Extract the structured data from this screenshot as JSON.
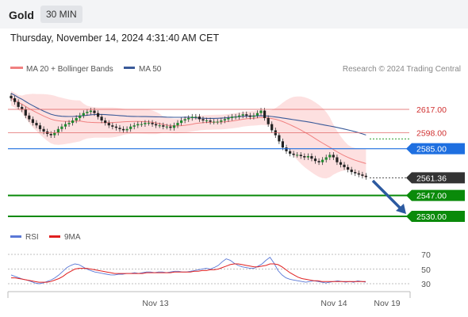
{
  "header": {
    "symbol": "Gold",
    "timeframe": "30 MIN",
    "datetime": "Thursday, November 14, 2024 4:31:40 AM CET"
  },
  "legend": {
    "ma20_label": "MA 20 + Bollinger Bands",
    "ma50_label": "MA 50",
    "ma20_color": "#f08080",
    "ma50_color": "#3a5a99",
    "credit": "Research © 2024 Trading Central"
  },
  "rsi_legend": {
    "rsi_label": "RSI",
    "ma_label": "9MA",
    "rsi_color": "#5a78d6",
    "ma_color": "#e02020"
  },
  "levels": [
    {
      "value": 2617.0,
      "label": "2617.00",
      "kind": "resistance",
      "color": "#e06060"
    },
    {
      "value": 2598.0,
      "label": "2598.00",
      "kind": "resistance",
      "color": "#e06060"
    },
    {
      "value": 2585.0,
      "label": "2585.00",
      "kind": "pivot",
      "color": "#1e6fe0"
    },
    {
      "value": 2561.36,
      "label": "2561.36",
      "kind": "last",
      "color": "#333333"
    },
    {
      "value": 2547.0,
      "label": "2547.00",
      "kind": "support",
      "color": "#0a8a0a"
    },
    {
      "value": 2530.0,
      "label": "2530.00",
      "kind": "support",
      "color": "#0a8a0a"
    }
  ],
  "chart_data": {
    "type": "candlestick",
    "title": "Gold",
    "timeframe": "30 MIN",
    "y_range": [
      2525,
      2645
    ],
    "x_ticks": [
      "Nov 13",
      "Nov 14",
      "Nov 19"
    ],
    "candles_close": [
      2626,
      2623,
      2619,
      2617,
      2612,
      2609,
      2606,
      2604,
      2601,
      2599,
      2597,
      2596,
      2598,
      2601,
      2603,
      2605,
      2606,
      2608,
      2610,
      2612,
      2614,
      2615,
      2616,
      2614,
      2611,
      2608,
      2606,
      2604,
      2603,
      2602,
      2601,
      2600,
      2601,
      2603,
      2604,
      2605,
      2605,
      2606,
      2606,
      2605,
      2604,
      2604,
      2603,
      2603,
      2602,
      2604,
      2606,
      2608,
      2609,
      2610,
      2611,
      2611,
      2609,
      2608,
      2608,
      2607,
      2607,
      2607,
      2608,
      2609,
      2610,
      2611,
      2611,
      2612,
      2613,
      2612,
      2611,
      2612,
      2614,
      2616,
      2610,
      2605,
      2600,
      2596,
      2591,
      2586,
      2583,
      2581,
      2580,
      2580,
      2579,
      2578,
      2579,
      2577,
      2575,
      2574,
      2576,
      2578,
      2580,
      2578,
      2574,
      2572,
      2570,
      2568,
      2566,
      2565,
      2564,
      2563,
      2562
    ],
    "rsi": {
      "levels": [
        30,
        50,
        70
      ],
      "range": [
        15,
        85
      ],
      "rsi_values": [
        42,
        40,
        38,
        36,
        35,
        33,
        31,
        30,
        31,
        33,
        35,
        38,
        42,
        47,
        52,
        55,
        57,
        56,
        53,
        50,
        48,
        46,
        45,
        44,
        43,
        42,
        42,
        43,
        43,
        44,
        44,
        45,
        44,
        45,
        46,
        46,
        45,
        46,
        46,
        45,
        46,
        47,
        47,
        46,
        46,
        47,
        48,
        49,
        50,
        51,
        50,
        52,
        55,
        60,
        64,
        62,
        58,
        55,
        53,
        52,
        51,
        51,
        54,
        57,
        62,
        66,
        58,
        48,
        42,
        38,
        36,
        35,
        34,
        33,
        32,
        33,
        34,
        33,
        32,
        31,
        32,
        33,
        34,
        33,
        32,
        33,
        32,
        34,
        33,
        32
      ],
      "ma_values": [
        38,
        38,
        37,
        36,
        35,
        34,
        33,
        32,
        32,
        32,
        33,
        35,
        37,
        40,
        44,
        47,
        50,
        51,
        51,
        51,
        50,
        49,
        48,
        47,
        46,
        45,
        44,
        44,
        44,
        44,
        44,
        44,
        44,
        44,
        45,
        45,
        45,
        45,
        45,
        45,
        45,
        46,
        46,
        46,
        46,
        46,
        47,
        47,
        48,
        48,
        49,
        49,
        50,
        52,
        54,
        56,
        57,
        57,
        56,
        55,
        54,
        53,
        53,
        54,
        55,
        57,
        57,
        56,
        53,
        49,
        45,
        42,
        39,
        37,
        36,
        35,
        34,
        34,
        33,
        33,
        33,
        33,
        33,
        33,
        33,
        33,
        33,
        33,
        33,
        33
      ]
    },
    "rsi_tick_labels": [
      "70",
      "50",
      "30"
    ]
  }
}
